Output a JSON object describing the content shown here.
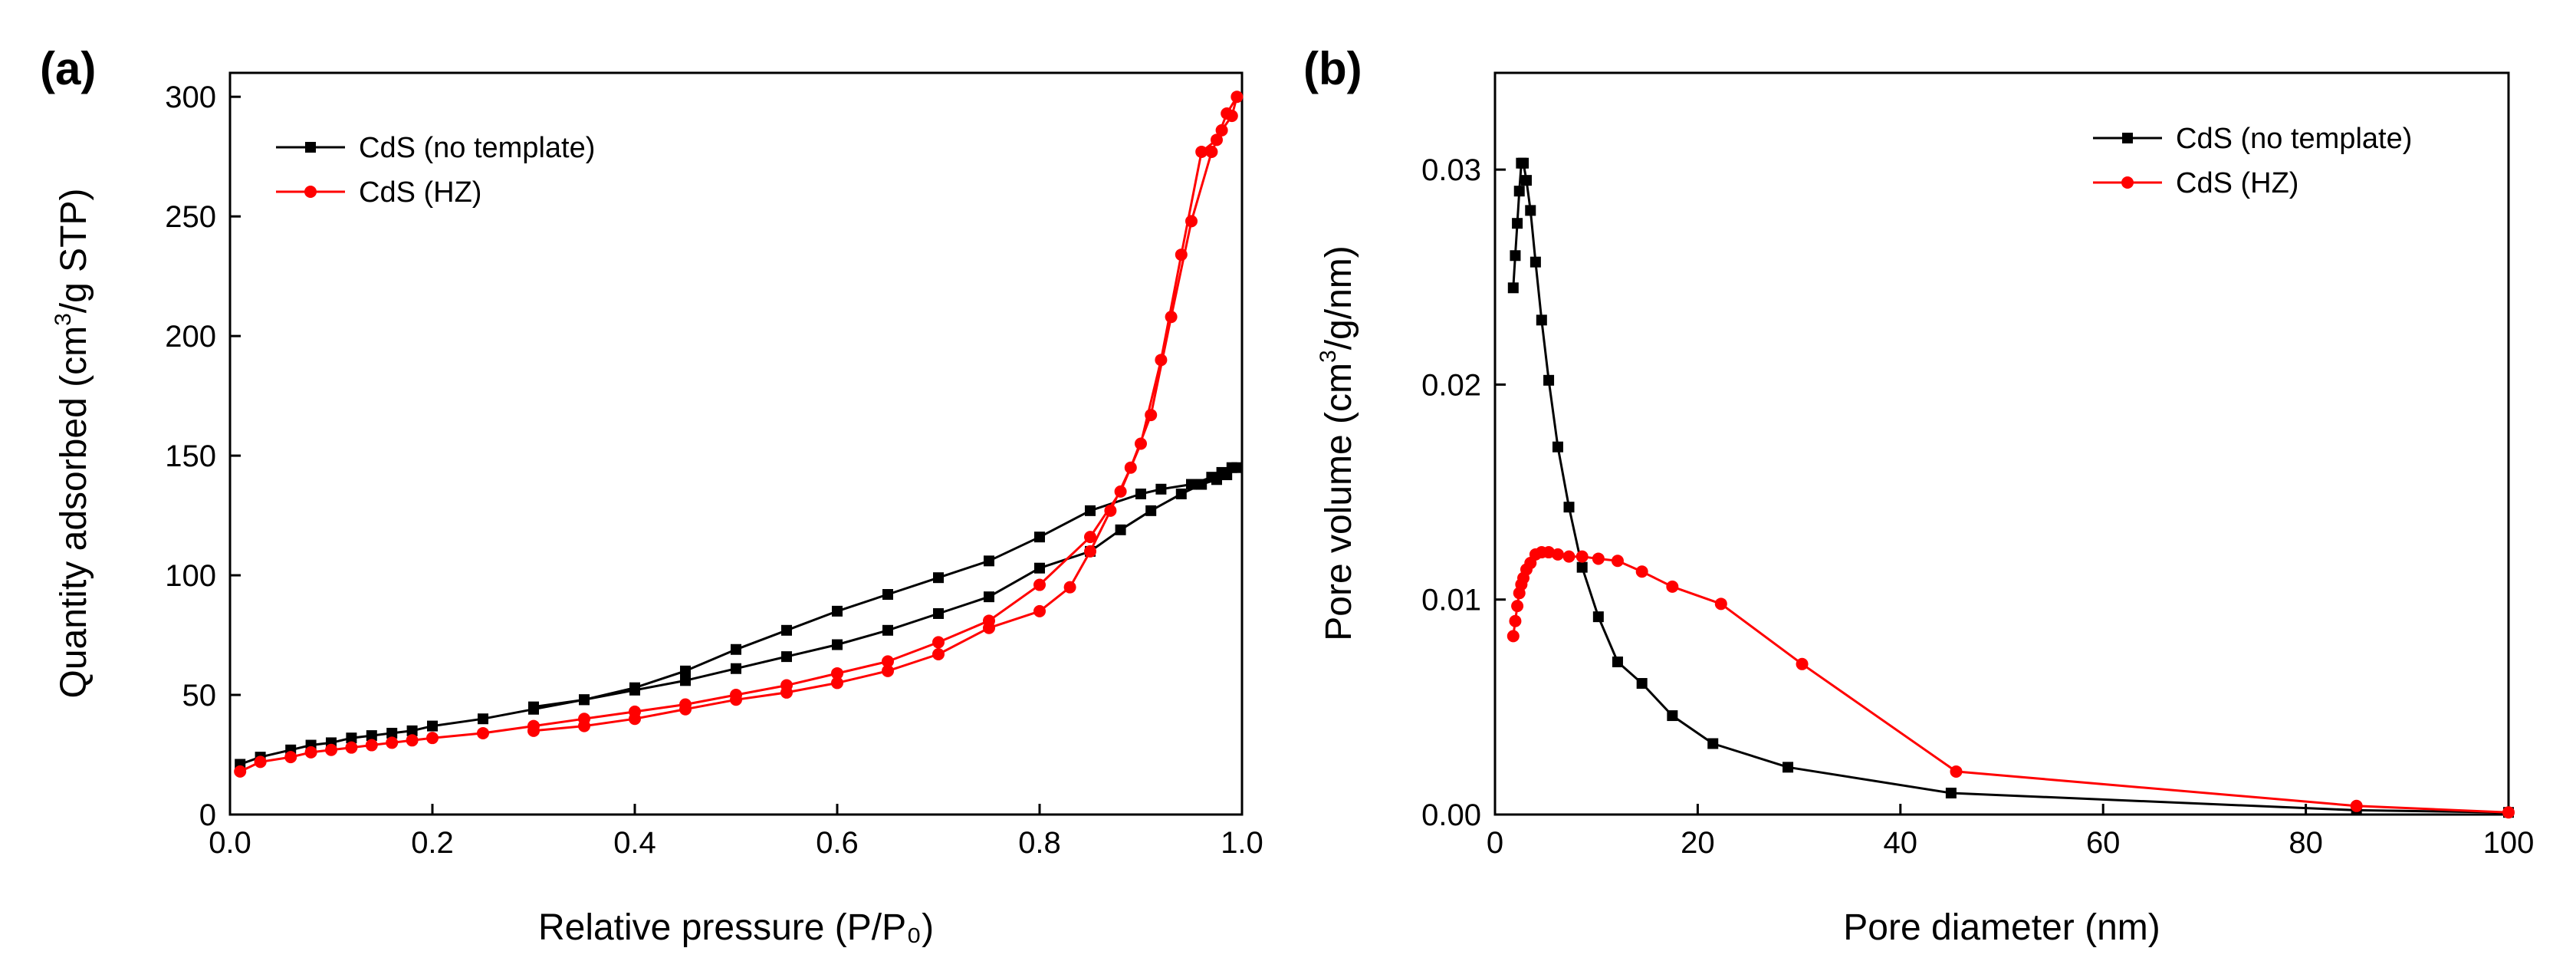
{
  "chart_data": [
    {
      "type": "line",
      "panel_label": "(a)",
      "xlabel": "Relative pressure (P/P₀)",
      "ylabel_prefix": "Quantity adsorbed (cm",
      "ylabel_sup": "3",
      "ylabel_suffix": "/g STP)",
      "xlim": [
        0.0,
        1.0
      ],
      "ylim": [
        0,
        310
      ],
      "xticks": [
        0.0,
        0.2,
        0.4,
        0.6,
        0.8,
        1.0
      ],
      "xtick_labels": [
        "0.0",
        "0.2",
        "0.4",
        "0.6",
        "0.8",
        "1.0"
      ],
      "yticks": [
        0,
        50,
        100,
        150,
        200,
        250,
        300
      ],
      "ytick_labels": [
        "0",
        "50",
        "100",
        "150",
        "200",
        "250",
        "300"
      ],
      "legend_position": "top-left",
      "series": [
        {
          "name": "CdS (no template)",
          "color": "#000000",
          "marker": "square",
          "x": [
            0.01,
            0.03,
            0.06,
            0.08,
            0.1,
            0.12,
            0.14,
            0.16,
            0.18,
            0.2,
            0.25,
            0.3,
            0.35,
            0.4,
            0.45,
            0.5,
            0.55,
            0.6,
            0.65,
            0.7,
            0.75,
            0.8,
            0.85,
            0.88,
            0.91,
            0.94,
            0.96,
            0.975,
            0.985,
            0.995,
            0.99,
            0.98,
            0.97,
            0.95,
            0.92,
            0.9,
            0.85,
            0.8,
            0.75,
            0.7,
            0.65,
            0.6,
            0.55,
            0.5,
            0.45,
            0.4,
            0.35,
            0.3
          ],
          "y": [
            21,
            24,
            27,
            29,
            30,
            32,
            33,
            34,
            35,
            37,
            40,
            44,
            48,
            52,
            56,
            61,
            66,
            71,
            77,
            84,
            91,
            103,
            110,
            119,
            127,
            134,
            138,
            140,
            142,
            145,
            145,
            143,
            141,
            138,
            136,
            134,
            127,
            116,
            106,
            99,
            92,
            85,
            77,
            69,
            60,
            53,
            48,
            45
          ]
        },
        {
          "name": "CdS (HZ)",
          "color": "#ff0000",
          "marker": "circle",
          "x": [
            0.01,
            0.03,
            0.06,
            0.08,
            0.1,
            0.12,
            0.14,
            0.16,
            0.18,
            0.2,
            0.25,
            0.3,
            0.35,
            0.4,
            0.45,
            0.5,
            0.55,
            0.6,
            0.65,
            0.7,
            0.75,
            0.8,
            0.85,
            0.88,
            0.9,
            0.92,
            0.94,
            0.96,
            0.975,
            0.985,
            0.995,
            0.99,
            0.98,
            0.97,
            0.95,
            0.93,
            0.91,
            0.89,
            0.87,
            0.85,
            0.83,
            0.8,
            0.75,
            0.7,
            0.65,
            0.6,
            0.55,
            0.5,
            0.45,
            0.4,
            0.35,
            0.3
          ],
          "y": [
            18,
            22,
            24,
            26,
            27,
            28,
            29,
            30,
            31,
            32,
            34,
            37,
            40,
            43,
            46,
            50,
            54,
            59,
            64,
            72,
            81,
            96,
            116,
            135,
            155,
            190,
            234,
            277,
            282,
            293,
            300,
            292,
            286,
            277,
            248,
            208,
            167,
            145,
            127,
            110,
            95,
            85,
            78,
            67,
            60,
            55,
            51,
            48,
            44,
            40,
            37,
            35
          ]
        }
      ]
    },
    {
      "type": "line",
      "panel_label": "(b)",
      "xlabel": "Pore diameter (nm)",
      "ylabel_prefix": "Pore volume (cm",
      "ylabel_sup": "3",
      "ylabel_suffix": "/g/nm)",
      "xlim": [
        0,
        100
      ],
      "ylim": [
        0,
        0.0345
      ],
      "xticks": [
        0,
        20,
        40,
        60,
        80,
        100
      ],
      "xtick_labels": [
        "0",
        "20",
        "40",
        "60",
        "80",
        "100"
      ],
      "yticks": [
        0.0,
        0.01,
        0.02,
        0.03
      ],
      "ytick_labels": [
        "0.00",
        "0.01",
        "0.02",
        "0.03"
      ],
      "legend_position": "top-right",
      "series": [
        {
          "name": "CdS (no template)",
          "color": "#000000",
          "marker": "square",
          "x": [
            1.8,
            2.0,
            2.2,
            2.4,
            2.6,
            2.8,
            3.1,
            3.5,
            4.0,
            4.6,
            5.3,
            6.2,
            7.3,
            8.6,
            10.2,
            12.1,
            14.5,
            17.5,
            21.5,
            28.9,
            45,
            85,
            100
          ],
          "y": [
            0.0245,
            0.026,
            0.0275,
            0.029,
            0.0303,
            0.0303,
            0.0295,
            0.0281,
            0.0257,
            0.023,
            0.0202,
            0.0171,
            0.0143,
            0.0115,
            0.0092,
            0.0071,
            0.0061,
            0.0046,
            0.0033,
            0.0022,
            0.001,
            0.0002,
            0.0001
          ]
        },
        {
          "name": "CdS (HZ)",
          "color": "#ff0000",
          "marker": "circle",
          "x": [
            1.8,
            2.0,
            2.2,
            2.4,
            2.6,
            2.8,
            3.1,
            3.5,
            4.0,
            4.6,
            5.3,
            6.2,
            7.3,
            8.6,
            10.2,
            12.1,
            14.5,
            17.5,
            22.3,
            30.3,
            45.5,
            85,
            100
          ],
          "y": [
            0.0083,
            0.009,
            0.0097,
            0.0103,
            0.0107,
            0.011,
            0.0114,
            0.0117,
            0.0121,
            0.0122,
            0.0122,
            0.0121,
            0.012,
            0.012,
            0.0119,
            0.0118,
            0.0113,
            0.0106,
            0.0098,
            0.007,
            0.002,
            0.0004,
            0.0001
          ]
        }
      ]
    }
  ]
}
